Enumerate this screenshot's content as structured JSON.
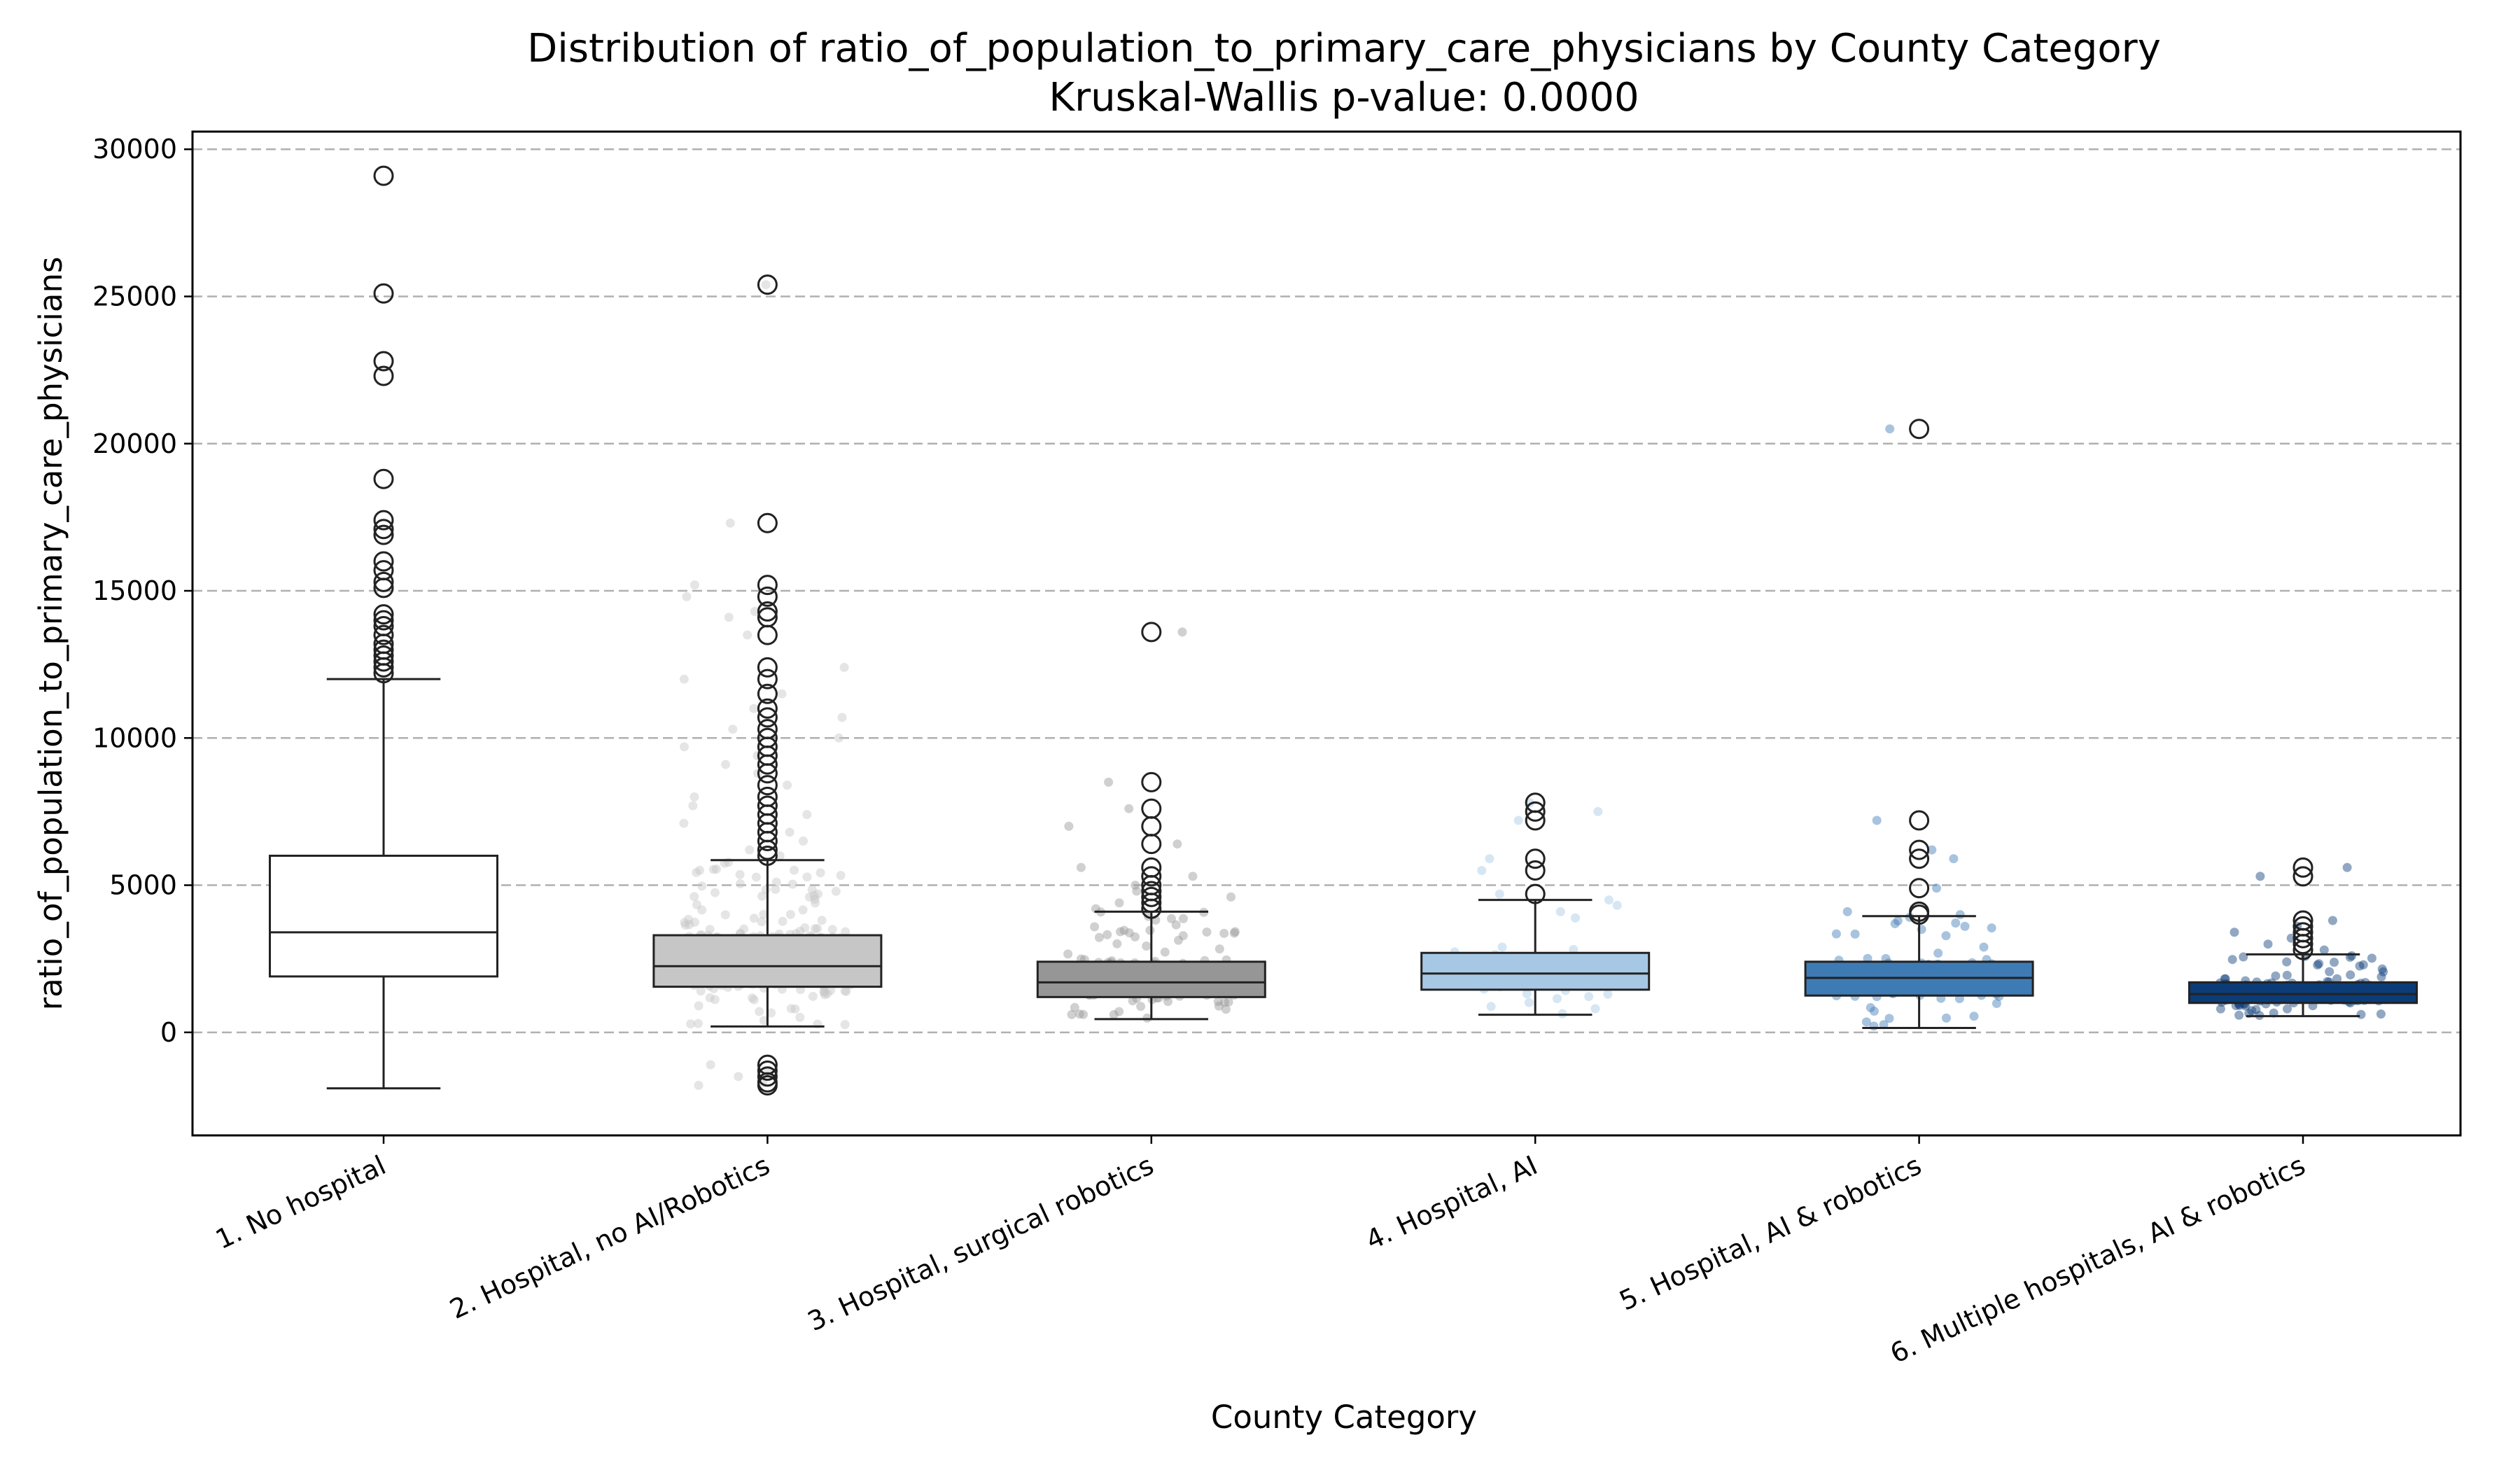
{
  "chart_data": {
    "type": "box",
    "title": "Distribution of ratio_of_population_to_primary_care_physicians by County Category",
    "subtitle": "Kruskal-Wallis p-value: 0.0000",
    "xlabel": "County Category",
    "ylabel": "ratio_of_population_to_primary_care_physicians",
    "ylim": [
      -3500,
      30600
    ],
    "yticks": [
      0,
      5000,
      10000,
      15000,
      20000,
      25000,
      30000
    ],
    "ytick_labels": [
      "0",
      "5000",
      "10000",
      "15000",
      "20000",
      "25000",
      "30000"
    ],
    "grid": "horizontal-dashed",
    "categories": [
      "1. No hospital",
      "2. Hospital, no AI/Robotics",
      "3. Hospital, surgical robotics",
      "4. Hospital, AI",
      "5. Hospital, AI & robotics",
      "6. Multiple hospitals, AI & robotics"
    ],
    "boxes": [
      {
        "category": "1. No hospital",
        "color": "#ffffff",
        "whisker_low": -1900,
        "q1": 1900,
        "median": 3400,
        "q3": 6000,
        "whisker_high": 12000,
        "outliers": [
          29100,
          25100,
          22800,
          22300,
          18800,
          17400,
          17100,
          16900,
          16000,
          15700,
          15300,
          15100,
          14200,
          14000,
          13800,
          13500,
          13200,
          13000,
          12800,
          12600,
          12400,
          12200
        ]
      },
      {
        "category": "2. Hospital, no AI/Robotics",
        "color": "#c6c6c6",
        "whisker_low": 200,
        "q1": 1550,
        "median": 2250,
        "q3": 3300,
        "whisker_high": 5850,
        "outliers": [
          25400,
          17300,
          15200,
          14800,
          14300,
          14100,
          13500,
          12400,
          12000,
          11500,
          11000,
          10700,
          10300,
          10000,
          9700,
          9400,
          9100,
          8800,
          8400,
          8000,
          7700,
          7400,
          7100,
          6800,
          6500,
          6200,
          6000,
          -1100,
          -1300,
          -1500,
          -1700,
          -1800
        ]
      },
      {
        "category": "3. Hospital, surgical robotics",
        "color": "#969696",
        "whisker_low": 450,
        "q1": 1200,
        "median": 1700,
        "q3": 2400,
        "whisker_high": 4100,
        "outliers": [
          13600,
          8500,
          7600,
          7000,
          6400,
          5600,
          5300,
          5000,
          4800,
          4600,
          4400,
          4200
        ]
      },
      {
        "category": "4. Hospital, AI",
        "color": "#a6c8e5",
        "whisker_low": 600,
        "q1": 1450,
        "median": 2000,
        "q3": 2700,
        "whisker_high": 4500,
        "outliers": [
          7800,
          7500,
          7200,
          5900,
          5500,
          4700
        ]
      },
      {
        "category": "5. Hospital, AI & robotics",
        "color": "#3e7bb5",
        "whisker_low": 150,
        "q1": 1250,
        "median": 1850,
        "q3": 2400,
        "whisker_high": 3950,
        "outliers": [
          20500,
          7200,
          6200,
          5900,
          4900,
          4100,
          4000
        ]
      },
      {
        "category": "6. Multiple hospitals, AI & robotics",
        "color": "#0c3c77",
        "whisker_low": 550,
        "q1": 1000,
        "median": 1300,
        "q3": 1700,
        "whisker_high": 2650,
        "outliers": [
          5600,
          5300,
          3800,
          3600,
          3400,
          3200,
          3000,
          2800
        ]
      }
    ]
  }
}
